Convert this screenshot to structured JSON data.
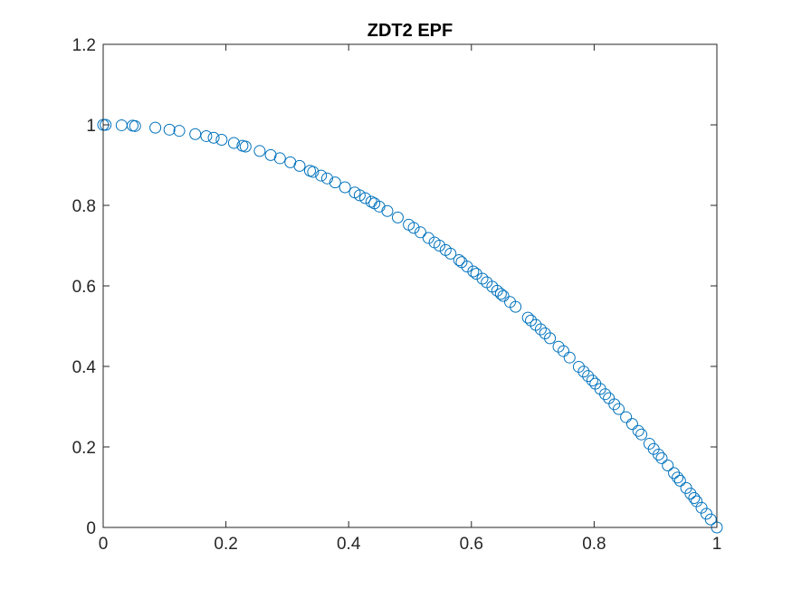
{
  "chart_data": {
    "type": "scatter",
    "title": "ZDT2 EPF",
    "xlabel": "",
    "ylabel": "",
    "xlim": [
      0,
      1
    ],
    "ylim": [
      0,
      1.2
    ],
    "xticks": [
      0,
      0.2,
      0.4,
      0.6,
      0.8,
      1
    ],
    "xtick_labels": [
      "0",
      "0.2",
      "0.4",
      "0.6",
      "0.8",
      "1"
    ],
    "yticks": [
      0,
      0.2,
      0.4,
      0.6,
      0.8,
      1,
      1.2
    ],
    "ytick_labels": [
      "0",
      "0.2",
      "0.4",
      "0.6",
      "0.8",
      "1",
      "1.2"
    ],
    "grid": false,
    "marker": "circle-open",
    "color": "#0072BD",
    "series": [
      {
        "x": [
          0,
          0.004,
          0.03,
          0.048,
          0.052,
          0.085,
          0.108,
          0.124,
          0.15,
          0.168,
          0.18,
          0.193,
          0.213,
          0.227,
          0.232,
          0.255,
          0.273,
          0.288,
          0.305,
          0.32,
          0.337,
          0.342,
          0.355,
          0.365,
          0.378,
          0.394,
          0.41,
          0.418,
          0.427,
          0.437,
          0.442,
          0.45,
          0.463,
          0.48,
          0.498,
          0.506,
          0.517,
          0.53,
          0.54,
          0.548,
          0.558,
          0.566,
          0.58,
          0.584,
          0.593,
          0.603,
          0.608,
          0.618,
          0.625,
          0.634,
          0.642,
          0.648,
          0.652,
          0.663,
          0.672,
          0.692,
          0.697,
          0.705,
          0.713,
          0.72,
          0.728,
          0.742,
          0.75,
          0.76,
          0.775,
          0.783,
          0.79,
          0.797,
          0.802,
          0.81,
          0.818,
          0.824,
          0.833,
          0.84,
          0.852,
          0.862,
          0.872,
          0.877,
          0.89,
          0.897,
          0.905,
          0.91,
          0.92,
          0.93,
          0.936,
          0.94,
          0.95,
          0.957,
          0.963,
          0.967,
          0.975,
          0.983,
          0.99,
          1
        ],
        "y": [
          1,
          1,
          0.999,
          0.998,
          0.997,
          0.993,
          0.988,
          0.985,
          0.977,
          0.972,
          0.968,
          0.963,
          0.955,
          0.948,
          0.946,
          0.935,
          0.925,
          0.917,
          0.907,
          0.898,
          0.886,
          0.883,
          0.874,
          0.867,
          0.857,
          0.845,
          0.832,
          0.825,
          0.818,
          0.809,
          0.805,
          0.797,
          0.786,
          0.77,
          0.752,
          0.744,
          0.733,
          0.719,
          0.708,
          0.7,
          0.689,
          0.68,
          0.664,
          0.659,
          0.648,
          0.636,
          0.63,
          0.618,
          0.609,
          0.598,
          0.588,
          0.58,
          0.575,
          0.56,
          0.548,
          0.521,
          0.514,
          0.503,
          0.492,
          0.482,
          0.47,
          0.449,
          0.438,
          0.422,
          0.399,
          0.387,
          0.376,
          0.365,
          0.357,
          0.344,
          0.331,
          0.321,
          0.306,
          0.294,
          0.274,
          0.257,
          0.24,
          0.231,
          0.208,
          0.195,
          0.181,
          0.172,
          0.154,
          0.135,
          0.124,
          0.116,
          0.098,
          0.084,
          0.073,
          0.065,
          0.049,
          0.034,
          0.02,
          0
        ]
      }
    ]
  }
}
